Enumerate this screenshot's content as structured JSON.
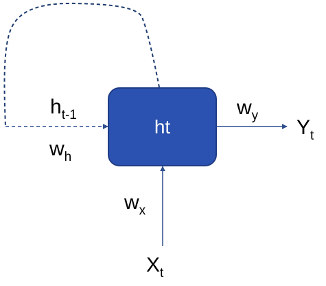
{
  "diagram": {
    "node": {
      "label": "ht"
    },
    "labels": {
      "h_prev": {
        "base": "h",
        "sub": "t-1"
      },
      "w_h": {
        "base": "w",
        "sub": "h"
      },
      "w_y": {
        "base": "w",
        "sub": "y"
      },
      "y_out": {
        "base": "Y",
        "sub": "t"
      },
      "w_x": {
        "base": "w",
        "sub": "x"
      },
      "x_in": {
        "base": "X",
        "sub": "t"
      }
    },
    "colors": {
      "node_fill": "#2b52b0",
      "node_stroke": "#1f3c85",
      "line": "#2f4f8f",
      "dashed": "#1f3c70"
    }
  }
}
